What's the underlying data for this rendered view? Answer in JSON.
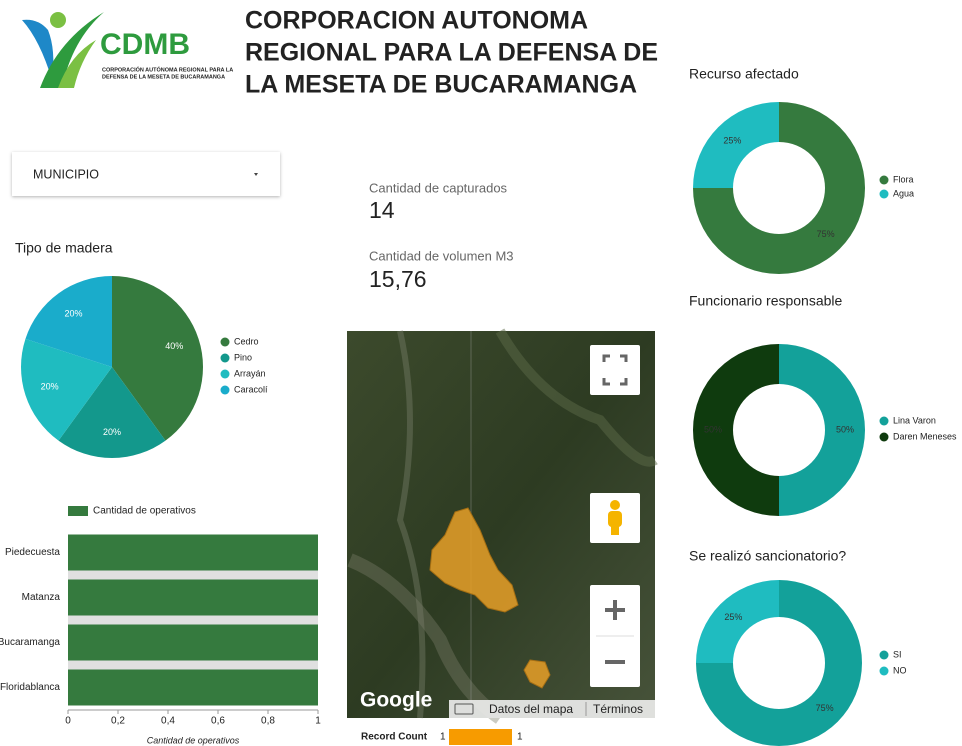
{
  "header": {
    "logo_text": "CDMB",
    "logo_subtext": [
      "CORPORACIÓN AUTÓNOMA REGIONAL PARA LA",
      "DEFENSA DE LA MESETA DE BUCARAMANGA"
    ],
    "title": [
      "CORPORACION AUTONOMA",
      "REGIONAL PARA LA DEFENSA DE",
      "LA MESETA DE BUCARAMANGA"
    ]
  },
  "filter": {
    "label": "MUNICIPIO"
  },
  "kpis": [
    {
      "label": "Cantidad de capturados",
      "value": "14"
    },
    {
      "label": "Cantidad de volumen M3",
      "value": "15,76"
    }
  ],
  "map": {
    "brand": "Google",
    "data_link": "Datos del mapa",
    "terms_link": "Términos",
    "legend": {
      "title": "Record Count",
      "min": "1",
      "max": "1"
    }
  },
  "chart_data": [
    {
      "type": "pie",
      "title": "Tipo de madera",
      "categories": [
        "Cedro",
        "Pino",
        "Arrayán",
        "Caracolí"
      ],
      "values": [
        40,
        20,
        20,
        20
      ],
      "value_labels": [
        "40%",
        "20%",
        "20%",
        "20%"
      ],
      "colors": [
        "#357a3e",
        "#13988c",
        "#1fbcc0",
        "#1aaccb"
      ]
    },
    {
      "type": "donut",
      "title": "Recurso afectado",
      "categories": [
        "Flora",
        "Agua"
      ],
      "values": [
        75,
        25
      ],
      "value_labels": [
        "75%",
        "25%"
      ],
      "colors": [
        "#357a3e",
        "#1fbcc0"
      ]
    },
    {
      "type": "donut",
      "title": "Funcionario responsable",
      "categories": [
        "Lina Varon",
        "Daren Meneses"
      ],
      "values": [
        50,
        50
      ],
      "value_labels": [
        "50%",
        "50%"
      ],
      "colors": [
        "#13a19a",
        "#0f3b0e"
      ]
    },
    {
      "type": "donut",
      "title": "Se realizó sancionatorio?",
      "categories": [
        "SI",
        "NO"
      ],
      "values": [
        75,
        25
      ],
      "value_labels": [
        "75%",
        "25%"
      ],
      "colors": [
        "#13a19a",
        "#1fbcc0"
      ]
    },
    {
      "type": "bar",
      "orientation": "horizontal",
      "categories": [
        "Piedecuesta",
        "Matanza",
        "Bucaramanga",
        "Floridablanca"
      ],
      "series": [
        {
          "name": "Cantidad de operativos",
          "color": "#357a3e",
          "values": [
            1,
            1,
            1,
            1
          ]
        }
      ],
      "xlim": [
        0,
        1
      ],
      "xticks": [
        0,
        {
          "value": 0.2,
          "label": "0,2"
        },
        {
          "value": 0.4,
          "label": "0,4"
        },
        {
          "value": 0.6,
          "label": "0,6"
        },
        {
          "value": 0.8,
          "label": "0,8"
        },
        1
      ],
      "xlabel": "Cantidad de operativos"
    }
  ]
}
